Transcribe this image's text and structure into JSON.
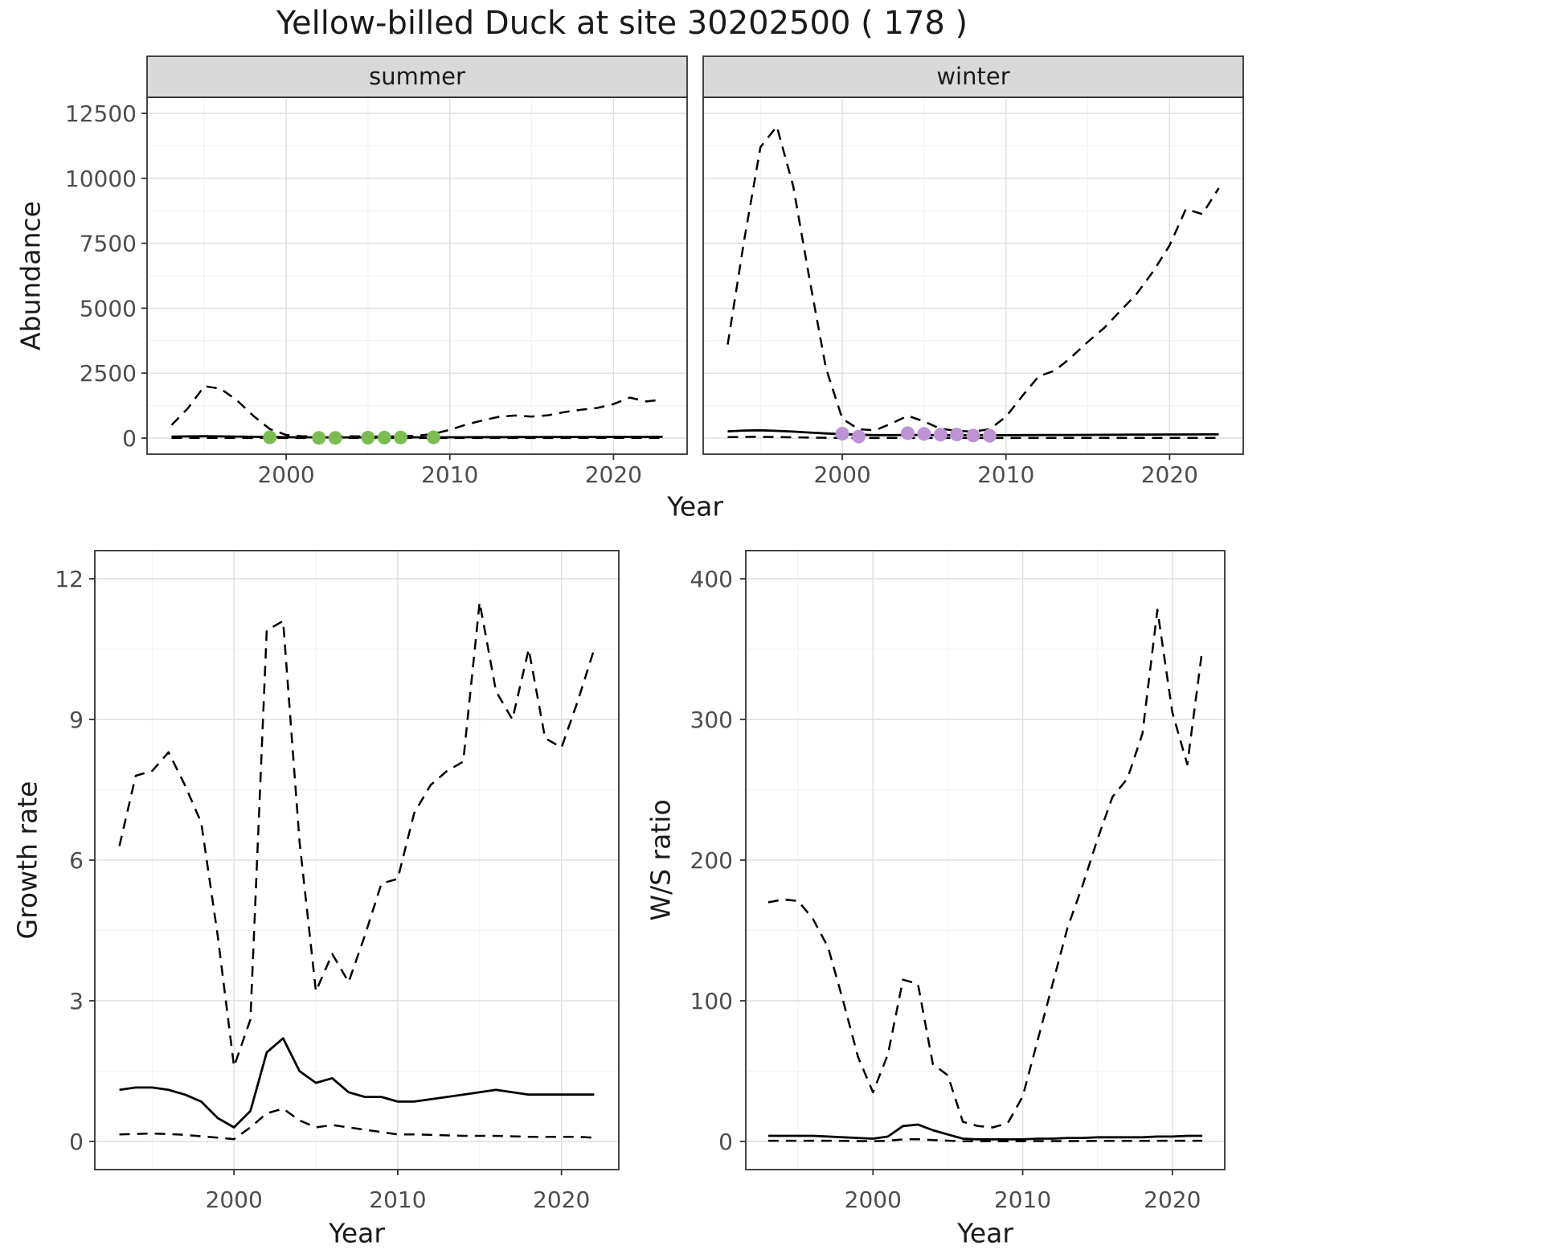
{
  "title": "Yellow-billed Duck at site 30202500 ( 178 )",
  "colors": {
    "summer_point": "#7CBC53",
    "winter_point": "#BE93D4",
    "line": "#000000",
    "strip_bg": "#D9D9D9",
    "panel_bg": "#FFFFFF",
    "panel_border": "#333333",
    "grid_major": "#DFDFDF",
    "grid_minor": "#F1F1F1",
    "tick_label": "#4D4D4D",
    "text": "#1A1A1A"
  },
  "chart_data": [
    {
      "id": "abundance",
      "type": "line",
      "xlabel": "Year",
      "ylabel": "Abundance",
      "xlim": [
        1991.5,
        2024.5
      ],
      "ylim": [
        0,
        12500
      ],
      "xticks": [
        2000,
        2010,
        2020
      ],
      "yticks": [
        0,
        2500,
        5000,
        7500,
        10000,
        12500
      ],
      "xticks_minor": [
        1995,
        2005,
        2015
      ],
      "yticks_minor": [
        1250,
        3750,
        6250,
        8750,
        11250
      ],
      "years": [
        1993,
        1994,
        1995,
        1996,
        1997,
        1998,
        1999,
        2000,
        2001,
        2002,
        2003,
        2004,
        2005,
        2006,
        2007,
        2008,
        2009,
        2010,
        2011,
        2012,
        2013,
        2014,
        2015,
        2016,
        2017,
        2018,
        2019,
        2020,
        2021,
        2022,
        2023
      ],
      "facets": [
        {
          "label": "summer",
          "series": [
            {
              "name": "upper_ci",
              "style": "dashed",
              "values": [
                500,
                1150,
                2000,
                1900,
                1450,
                850,
                350,
                120,
                70,
                60,
                60,
                70,
                60,
                60,
                70,
                90,
                160,
                320,
                520,
                680,
                820,
                870,
                830,
                880,
                1000,
                1090,
                1160,
                1310,
                1560,
                1410,
                1480
              ]
            },
            {
              "name": "mean",
              "style": "solid",
              "values": [
                60,
                65,
                70,
                65,
                60,
                50,
                40,
                35,
                30,
                28,
                28,
                28,
                28,
                28,
                28,
                30,
                30,
                32,
                34,
                36,
                38,
                40,
                40,
                42,
                42,
                44,
                44,
                46,
                46,
                46,
                48
              ]
            },
            {
              "name": "lower_ci",
              "style": "dashed",
              "values": [
                8,
                8,
                8,
                6,
                5,
                4,
                3,
                2,
                2,
                2,
                2,
                2,
                2,
                2,
                2,
                2,
                2,
                2,
                3,
                3,
                3,
                4,
                4,
                4,
                4,
                5,
                5,
                5,
                5,
                5,
                5
              ]
            }
          ],
          "points": {
            "name": "observed-count",
            "color": "summer_point",
            "years": [
              1999,
              2002,
              2003,
              2005,
              2006,
              2007,
              2009
            ],
            "values": [
              30,
              10,
              10,
              15,
              20,
              25,
              30
            ]
          }
        },
        {
          "label": "winter",
          "series": [
            {
              "name": "upper_ci",
              "style": "dashed",
              "values": [
                3600,
                7600,
                11200,
                12000,
                9700,
                6100,
                2700,
                750,
                340,
                300,
                560,
                860,
                640,
                360,
                280,
                250,
                340,
                820,
                1620,
                2380,
                2600,
                3120,
                3700,
                4240,
                4900,
                5560,
                6420,
                7420,
                8820,
                8620,
                9620
              ]
            },
            {
              "name": "mean",
              "style": "solid",
              "values": [
                260,
                290,
                300,
                280,
                250,
                215,
                180,
                150,
                130,
                115,
                115,
                120,
                120,
                115,
                110,
                110,
                110,
                112,
                115,
                118,
                120,
                122,
                125,
                128,
                130,
                132,
                135,
                138,
                140,
                142,
                145
              ]
            },
            {
              "name": "lower_ci",
              "style": "dashed",
              "values": [
                40,
                45,
                50,
                40,
                30,
                20,
                12,
                6,
                3,
                3,
                3,
                3,
                3,
                3,
                3,
                3,
                3,
                3,
                4,
                4,
                5,
                5,
                5,
                6,
                6,
                7,
                8,
                8,
                9,
                9,
                10
              ]
            }
          ],
          "points": {
            "name": "observed-count",
            "color": "winter_point",
            "years": [
              2000,
              2001,
              2004,
              2005,
              2006,
              2007,
              2008,
              2009
            ],
            "values": [
              170,
              60,
              190,
              160,
              130,
              140,
              100,
              90
            ]
          }
        }
      ]
    },
    {
      "id": "growth_rate",
      "type": "line",
      "xlabel": "Year",
      "ylabel": "Growth rate",
      "xlim": [
        1991.5,
        2023.5
      ],
      "ylim": [
        0,
        12
      ],
      "xticks": [
        2000,
        2010,
        2020
      ],
      "yticks": [
        0,
        3,
        6,
        9,
        12
      ],
      "xticks_minor": [
        1995,
        2005,
        2015
      ],
      "yticks_minor": [
        1.5,
        4.5,
        7.5,
        10.5
      ],
      "years": [
        1993,
        1994,
        1995,
        1996,
        1997,
        1998,
        1999,
        2000,
        2001,
        2002,
        2003,
        2004,
        2005,
        2006,
        2007,
        2008,
        2009,
        2010,
        2011,
        2012,
        2013,
        2014,
        2015,
        2016,
        2017,
        2018,
        2019,
        2020,
        2021,
        2022
      ],
      "series": [
        {
          "name": "upper_ci",
          "style": "dashed",
          "values": [
            6.3,
            7.8,
            7.9,
            8.3,
            7.6,
            6.8,
            4.4,
            1.6,
            2.6,
            10.9,
            11.1,
            6.4,
            3.2,
            4.0,
            3.4,
            4.4,
            5.5,
            5.6,
            7.0,
            7.6,
            7.9,
            8.1,
            11.5,
            9.6,
            9.0,
            10.5,
            8.6,
            8.4,
            9.4,
            10.5
          ]
        },
        {
          "name": "mean",
          "style": "solid",
          "values": [
            1.1,
            1.15,
            1.15,
            1.1,
            1.0,
            0.85,
            0.5,
            0.3,
            0.65,
            1.9,
            2.2,
            1.5,
            1.25,
            1.35,
            1.05,
            0.95,
            0.95,
            0.85,
            0.85,
            0.9,
            0.95,
            1.0,
            1.05,
            1.1,
            1.05,
            1.0,
            1.0,
            1.0,
            1.0,
            1.0
          ]
        },
        {
          "name": "lower_ci",
          "style": "dashed",
          "values": [
            0.15,
            0.16,
            0.17,
            0.16,
            0.14,
            0.11,
            0.08,
            0.05,
            0.3,
            0.6,
            0.7,
            0.45,
            0.3,
            0.35,
            0.3,
            0.25,
            0.2,
            0.15,
            0.15,
            0.14,
            0.13,
            0.12,
            0.12,
            0.12,
            0.11,
            0.1,
            0.1,
            0.1,
            0.1,
            0.08
          ]
        }
      ]
    },
    {
      "id": "ws_ratio",
      "type": "line",
      "xlabel": "Year",
      "ylabel": "W/S ratio",
      "xlim": [
        1991.5,
        2023.5
      ],
      "ylim": [
        0,
        400
      ],
      "xticks": [
        2000,
        2010,
        2020
      ],
      "yticks": [
        0,
        100,
        200,
        300,
        400
      ],
      "xticks_minor": [
        1995,
        2005,
        2015
      ],
      "yticks_minor": [
        50,
        150,
        250,
        350
      ],
      "years": [
        1993,
        1994,
        1995,
        1996,
        1997,
        1998,
        1999,
        2000,
        2001,
        2002,
        2003,
        2004,
        2005,
        2006,
        2007,
        2008,
        2009,
        2010,
        2011,
        2012,
        2013,
        2014,
        2015,
        2016,
        2017,
        2018,
        2019,
        2020,
        2021,
        2022
      ],
      "series": [
        {
          "name": "upper_ci",
          "style": "dashed",
          "values": [
            170,
            172,
            171,
            158,
            138,
            100,
            60,
            35,
            62,
            115,
            112,
            55,
            47,
            14,
            11,
            10,
            13,
            32,
            72,
            112,
            152,
            182,
            215,
            245,
            258,
            290,
            378,
            305,
            268,
            350
          ]
        },
        {
          "name": "mean",
          "style": "solid",
          "values": [
            4,
            4,
            4,
            4,
            3.5,
            3,
            2.5,
            2,
            3.5,
            11,
            12,
            8,
            5,
            2,
            1.5,
            1.5,
            1.5,
            1.5,
            2,
            2,
            2.5,
            2.5,
            3,
            3,
            3,
            3,
            3.5,
            3.5,
            4,
            4
          ]
        },
        {
          "name": "lower_ci",
          "style": "dashed",
          "values": [
            0.5,
            0.5,
            0.5,
            0.5,
            0.5,
            0.4,
            0.3,
            0.2,
            0.5,
            1.5,
            1.6,
            1.0,
            0.6,
            0.2,
            0.2,
            0.2,
            0.2,
            0.2,
            0.3,
            0.3,
            0.3,
            0.3,
            0.4,
            0.4,
            0.4,
            0.4,
            0.5,
            0.5,
            0.5,
            0.5
          ]
        }
      ]
    }
  ]
}
